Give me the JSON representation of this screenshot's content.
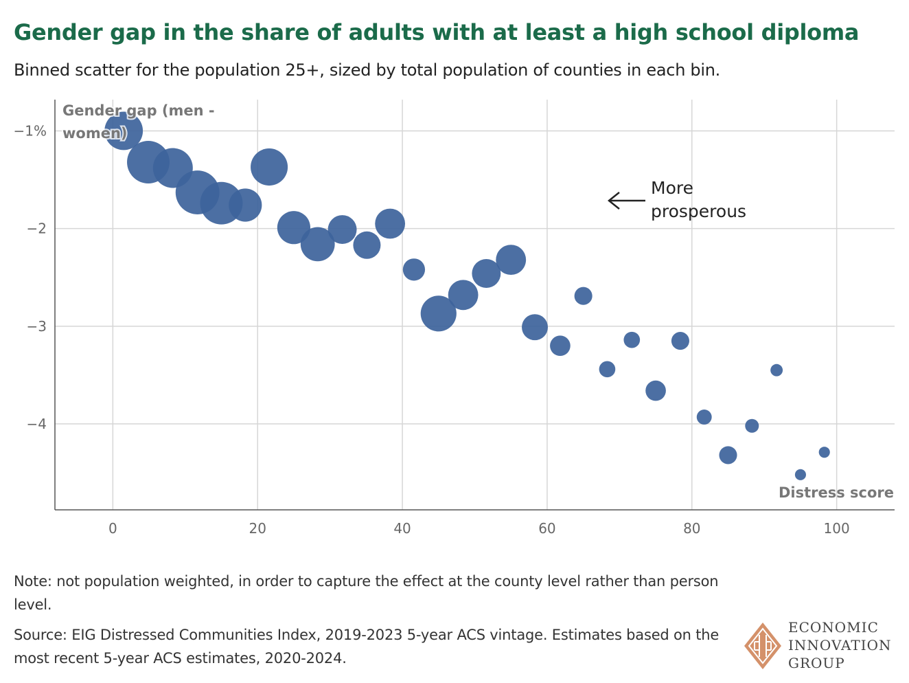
{
  "header": {
    "title": "Gender gap in the share of adults with at least a high school diploma",
    "subtitle": "Binned scatter for the population 25+, sized by total population of counties in each bin."
  },
  "chart_data": {
    "type": "scatter",
    "title": "Gender gap in the share of adults with at least a high school diploma",
    "xlabel": "Distress score",
    "ylabel": "Gender gap (men - women)",
    "xlim": [
      -8,
      108
    ],
    "ylim": [
      -4.88,
      -0.68
    ],
    "x_ticks": [
      0,
      20,
      40,
      60,
      80,
      100
    ],
    "x_tick_labels": [
      "0",
      "20",
      "40",
      "60",
      "80",
      "100"
    ],
    "y_ticks": [
      -1,
      -2,
      -3,
      -4
    ],
    "y_tick_labels": [
      "−1%",
      "−2",
      "−3",
      "−4"
    ],
    "grid": true,
    "point_color": "#3d639b",
    "annotation": {
      "text_line1": "More",
      "text_line2": "prosperous",
      "x": 70,
      "y": -1.7,
      "arrow": "left"
    },
    "points": [
      {
        "x": 1.5,
        "y": -1.0,
        "size": 78
      },
      {
        "x": 4.9,
        "y": -1.32,
        "size": 96
      },
      {
        "x": 8.3,
        "y": -1.38,
        "size": 84
      },
      {
        "x": 11.7,
        "y": -1.63,
        "size": 102
      },
      {
        "x": 15.0,
        "y": -1.74,
        "size": 96
      },
      {
        "x": 18.3,
        "y": -1.76,
        "size": 58
      },
      {
        "x": 21.6,
        "y": -1.37,
        "size": 73
      },
      {
        "x": 25.0,
        "y": -1.99,
        "size": 58
      },
      {
        "x": 28.3,
        "y": -2.16,
        "size": 62
      },
      {
        "x": 31.7,
        "y": -2.01,
        "size": 44
      },
      {
        "x": 35.1,
        "y": -2.17,
        "size": 40
      },
      {
        "x": 38.3,
        "y": -1.95,
        "size": 48
      },
      {
        "x": 41.6,
        "y": -2.42,
        "size": 26
      },
      {
        "x": 45.0,
        "y": -2.87,
        "size": 68
      },
      {
        "x": 48.4,
        "y": -2.68,
        "size": 48
      },
      {
        "x": 51.6,
        "y": -2.46,
        "size": 44
      },
      {
        "x": 55.0,
        "y": -2.32,
        "size": 48
      },
      {
        "x": 58.3,
        "y": -3.01,
        "size": 36
      },
      {
        "x": 61.8,
        "y": -3.2,
        "size": 22
      },
      {
        "x": 65.0,
        "y": -2.69,
        "size": 17
      },
      {
        "x": 68.3,
        "y": -3.44,
        "size": 14
      },
      {
        "x": 71.7,
        "y": -3.14,
        "size": 14
      },
      {
        "x": 75.0,
        "y": -3.66,
        "size": 22
      },
      {
        "x": 78.4,
        "y": -3.15,
        "size": 17
      },
      {
        "x": 81.7,
        "y": -3.93,
        "size": 12
      },
      {
        "x": 85.0,
        "y": -4.32,
        "size": 17
      },
      {
        "x": 88.3,
        "y": -4.02,
        "size": 10
      },
      {
        "x": 91.7,
        "y": -3.45,
        "size": 8
      },
      {
        "x": 95.0,
        "y": -4.52,
        "size": 6.5
      },
      {
        "x": 98.3,
        "y": -4.29,
        "size": 6.5
      }
    ]
  },
  "notes": {
    "note": "Note: not population weighted, in order to capture the effect at the county level rather than person level.",
    "source": "Source: EIG Distressed Communities Index, 2019-2023 5-year ACS vintage. Estimates based on the most recent 5-year ACS estimates, 2020-2024."
  },
  "logo": {
    "line1": "ECONOMIC",
    "line2": "INNOVATION",
    "line3": "GROUP",
    "color": "#d4916a"
  }
}
